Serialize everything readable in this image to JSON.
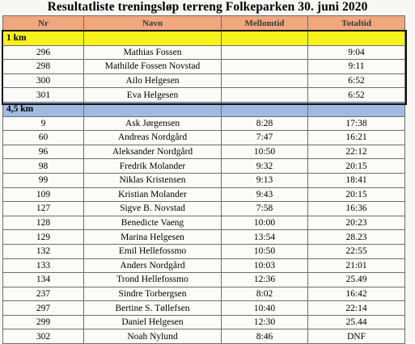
{
  "title": "Resultatliste treningsløp terreng Folkeparken 30. juni 2020",
  "headers": [
    "Nr",
    "Navn",
    "Mellomtid",
    "Totaltid"
  ],
  "sections": [
    {
      "label": "1 km",
      "color": "#f7f21a",
      "rows": [
        {
          "nr": "296",
          "navn": "Mathias Fossen",
          "mellomtid": "",
          "totaltid": "9:04"
        },
        {
          "nr": "298",
          "navn": "Mathilde Fossen Novstad",
          "mellomtid": "",
          "totaltid": "9:11"
        },
        {
          "nr": "300",
          "navn": "Ailo Helgesen",
          "mellomtid": "",
          "totaltid": "6:52"
        },
        {
          "nr": "301",
          "navn": "Eva Helgesen",
          "mellomtid": "",
          "totaltid": "6:52"
        }
      ]
    },
    {
      "label": "4,5 km",
      "color": "#9fbbe0",
      "rows": [
        {
          "nr": "9",
          "navn": "Ask Jørgensen",
          "mellomtid": "8:28",
          "totaltid": "17:38"
        },
        {
          "nr": "60",
          "navn": "Andreas Nordgård",
          "mellomtid": "7:47",
          "totaltid": "16:21"
        },
        {
          "nr": "96",
          "navn": "Aleksander Nordgård",
          "mellomtid": "10:50",
          "totaltid": "22:12"
        },
        {
          "nr": "98",
          "navn": "Fredrik Molander",
          "mellomtid": "9:32",
          "totaltid": "20:15"
        },
        {
          "nr": "99",
          "navn": "Niklas Kristensen",
          "mellomtid": "9:13",
          "totaltid": "18:41"
        },
        {
          "nr": "109",
          "navn": "Kristian Molander",
          "mellomtid": "9:43",
          "totaltid": "20:15"
        },
        {
          "nr": "127",
          "navn": "Sigve B. Novstad",
          "mellomtid": "7:58",
          "totaltid": "16:36"
        },
        {
          "nr": "128",
          "navn": "Benedicte Vaeng",
          "mellomtid": "10:00",
          "totaltid": "20:23"
        },
        {
          "nr": "129",
          "navn": "Marina Helgesen",
          "mellomtid": "13:54",
          "totaltid": "28.23"
        },
        {
          "nr": "132",
          "navn": "Emil Hellefossmo",
          "mellomtid": "10:50",
          "totaltid": "22:55"
        },
        {
          "nr": "133",
          "navn": "Anders Nordgård",
          "mellomtid": "10:03",
          "totaltid": "21:01"
        },
        {
          "nr": "134",
          "navn": "Trond Hellefossmo",
          "mellomtid": "12:36",
          "totaltid": "25.49"
        },
        {
          "nr": "237",
          "navn": "Sindre Torbergsen",
          "mellomtid": "8:02",
          "totaltid": "16:42"
        },
        {
          "nr": "297",
          "navn": "Bertine S. Tøllefsen",
          "mellomtid": "10:40",
          "totaltid": "22:14"
        },
        {
          "nr": "299",
          "navn": "Daniel Helgesen",
          "mellomtid": "12:30",
          "totaltid": "25.44"
        },
        {
          "nr": "302",
          "navn": "Noah Nylund",
          "mellomtid": "8:46",
          "totaltid": "DNF"
        }
      ]
    }
  ]
}
